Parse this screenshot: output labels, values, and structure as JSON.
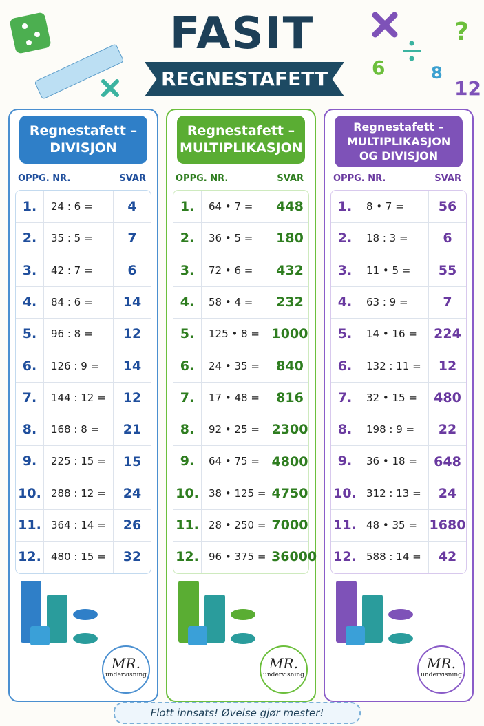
{
  "header": {
    "title": "FASIT",
    "subtitle": "REGNESTAFETT"
  },
  "decorations": {
    "numbers": [
      "6",
      "8",
      "12"
    ]
  },
  "columns": [
    {
      "title": [
        "Regnestafett –",
        "DIVISJON"
      ],
      "col_headers": [
        "OPPG. NR.",
        "SVAR"
      ],
      "rows": [
        [
          "1.",
          "24 : 6 =",
          "4"
        ],
        [
          "2.",
          "35 : 5 =",
          "7"
        ],
        [
          "3.",
          "42 : 7 =",
          "6"
        ],
        [
          "4.",
          "84 : 6 =",
          "14"
        ],
        [
          "5.",
          "96 : 8 =",
          "12"
        ],
        [
          "6.",
          "126 : 9 =",
          "14"
        ],
        [
          "7.",
          "144 : 12 =",
          "12"
        ],
        [
          "8.",
          "168 : 8 =",
          "21"
        ],
        [
          "9.",
          "225 : 15 =",
          "15"
        ],
        [
          "10.",
          "288 : 12 =",
          "24"
        ],
        [
          "11.",
          "364 : 14 =",
          "26"
        ],
        [
          "12.",
          "480 : 15 =",
          "32"
        ]
      ],
      "logo": [
        "MR.",
        "undervisning"
      ]
    },
    {
      "title": [
        "Regnestafett –",
        "MULTIPLIKASJON"
      ],
      "col_headers": [
        "OPPG. NR.",
        "SVAR"
      ],
      "rows": [
        [
          "1.",
          "64 • 7 =",
          "448"
        ],
        [
          "2.",
          "36 • 5 =",
          "180"
        ],
        [
          "3.",
          "72 • 6 =",
          "432"
        ],
        [
          "4.",
          "58 • 4 =",
          "232"
        ],
        [
          "5.",
          "125 • 8 =",
          "1000"
        ],
        [
          "6.",
          "24 • 35 =",
          "840"
        ],
        [
          "7.",
          "17 • 48 =",
          "816"
        ],
        [
          "8.",
          "92 • 25 =",
          "2300"
        ],
        [
          "9.",
          "64 • 75 =",
          "4800"
        ],
        [
          "10.",
          "38 • 125 =",
          "4750"
        ],
        [
          "11.",
          "28 • 250 =",
          "7000"
        ],
        [
          "12.",
          "96 • 375 =",
          "36000"
        ]
      ],
      "logo": [
        "MR.",
        "undervisning"
      ]
    },
    {
      "title": [
        "Regnestafett –",
        "MULTIPLIKASJON",
        "OG DIVISJON"
      ],
      "col_headers": [
        "OPPG. NR.",
        "SVAR"
      ],
      "rows": [
        [
          "1.",
          "8 • 7 =",
          "56"
        ],
        [
          "2.",
          "18 : 3 =",
          "6"
        ],
        [
          "3.",
          "11 • 5 =",
          "55"
        ],
        [
          "4.",
          "63 : 9 =",
          "7"
        ],
        [
          "5.",
          "14 • 16 =",
          "224"
        ],
        [
          "6.",
          "132 : 11 =",
          "12"
        ],
        [
          "7.",
          "32 • 15 =",
          "480"
        ],
        [
          "8.",
          "198 : 9 =",
          "22"
        ],
        [
          "9.",
          "36 • 18 =",
          "648"
        ],
        [
          "10.",
          "312 : 13 =",
          "24"
        ],
        [
          "11.",
          "48 • 35 =",
          "1680"
        ],
        [
          "12.",
          "588 : 14 =",
          "42"
        ]
      ],
      "logo": [
        "MR.",
        "undervisning"
      ]
    }
  ],
  "footer": "Flott innsats! Øvelse gjør mester!"
}
